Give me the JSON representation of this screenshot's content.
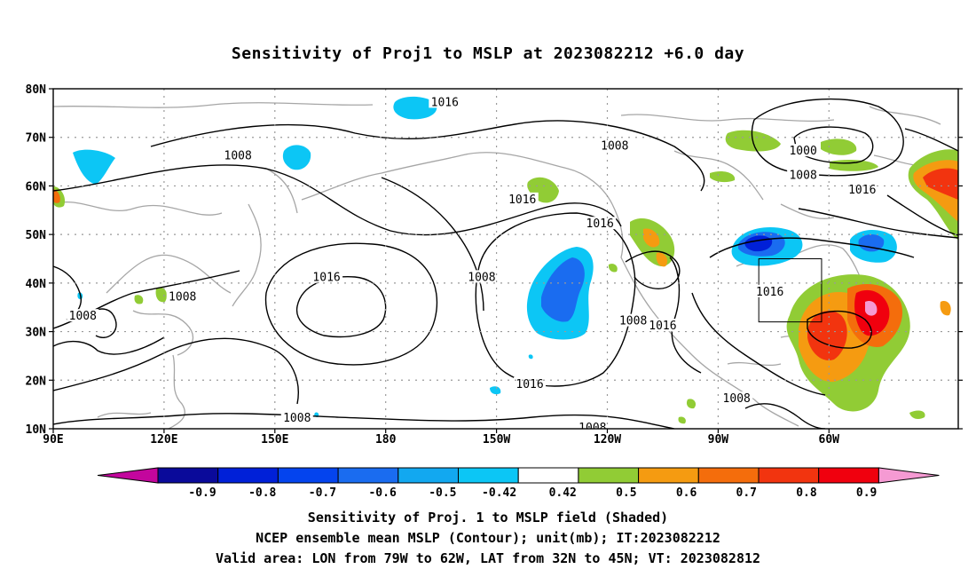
{
  "title": "Sensitivity of Proj1 to MSLP at 2023082212 +6.0 day",
  "map": {
    "lat_ticks": [
      "80N",
      "70N",
      "60N",
      "50N",
      "40N",
      "30N",
      "20N",
      "10N"
    ],
    "lon_ticks": [
      "90E",
      "120E",
      "150E",
      "180",
      "150W",
      "120W",
      "90W",
      "60W"
    ],
    "contour_labels": [
      {
        "text": "1016",
        "lon": -164,
        "lat": 77
      },
      {
        "text": "1008",
        "lon": -118,
        "lat": 68
      },
      {
        "text": "1008",
        "lon": 140,
        "lat": 66
      },
      {
        "text": "1016",
        "lon": -143,
        "lat": 57
      },
      {
        "text": "1016",
        "lon": -122,
        "lat": 52
      },
      {
        "text": "1008",
        "lon": -154,
        "lat": 41
      },
      {
        "text": "1016",
        "lon": 164,
        "lat": 41
      },
      {
        "text": "1008",
        "lon": 125,
        "lat": 37
      },
      {
        "text": "1008",
        "lon": 98,
        "lat": 33
      },
      {
        "text": "1008",
        "lon": -113,
        "lat": 32
      },
      {
        "text": "1016",
        "lon": -105,
        "lat": 31
      },
      {
        "text": "1016",
        "lon": -141,
        "lat": 19
      },
      {
        "text": "1008",
        "lon": 156,
        "lat": 12
      },
      {
        "text": "1008",
        "lon": -124,
        "lat": 10
      },
      {
        "text": "1008",
        "lon": -85,
        "lat": 16
      },
      {
        "text": "1016",
        "lon": -76,
        "lat": 38
      },
      {
        "text": "1000",
        "lon": -67,
        "lat": 67
      },
      {
        "text": "1008",
        "lon": -67,
        "lat": 62
      },
      {
        "text": "1016",
        "lon": -51,
        "lat": 59
      }
    ],
    "valid_box": {
      "lon_min": -79,
      "lon_max": -62,
      "lat_min": 32,
      "lat_max": 45
    }
  },
  "colorbar": {
    "labels": [
      "-0.9",
      "-0.8",
      "-0.7",
      "-0.6",
      "-0.5",
      "-0.42",
      "0.42",
      "0.5",
      "0.6",
      "0.7",
      "0.8",
      "0.9"
    ],
    "under_color": "#c3069d",
    "over_color": "#f59ad3",
    "colors": [
      "#0a0a9a",
      "#0020d8",
      "#0444ee",
      "#1a6cf0",
      "#12a8f0",
      "#0cc6f5",
      "#ffffff",
      "#91cc35",
      "#f59b11",
      "#f46d0c",
      "#f2340f",
      "#f0000e"
    ]
  },
  "captions": [
    "Sensitivity of Proj. 1 to MSLP field (Shaded)",
    "NCEP ensemble mean MSLP (Contour); unit(mb); IT:2023082212",
    "Valid area: LON from 79W to 62W, LAT from 32N to 45N; VT: 2023082812"
  ]
}
